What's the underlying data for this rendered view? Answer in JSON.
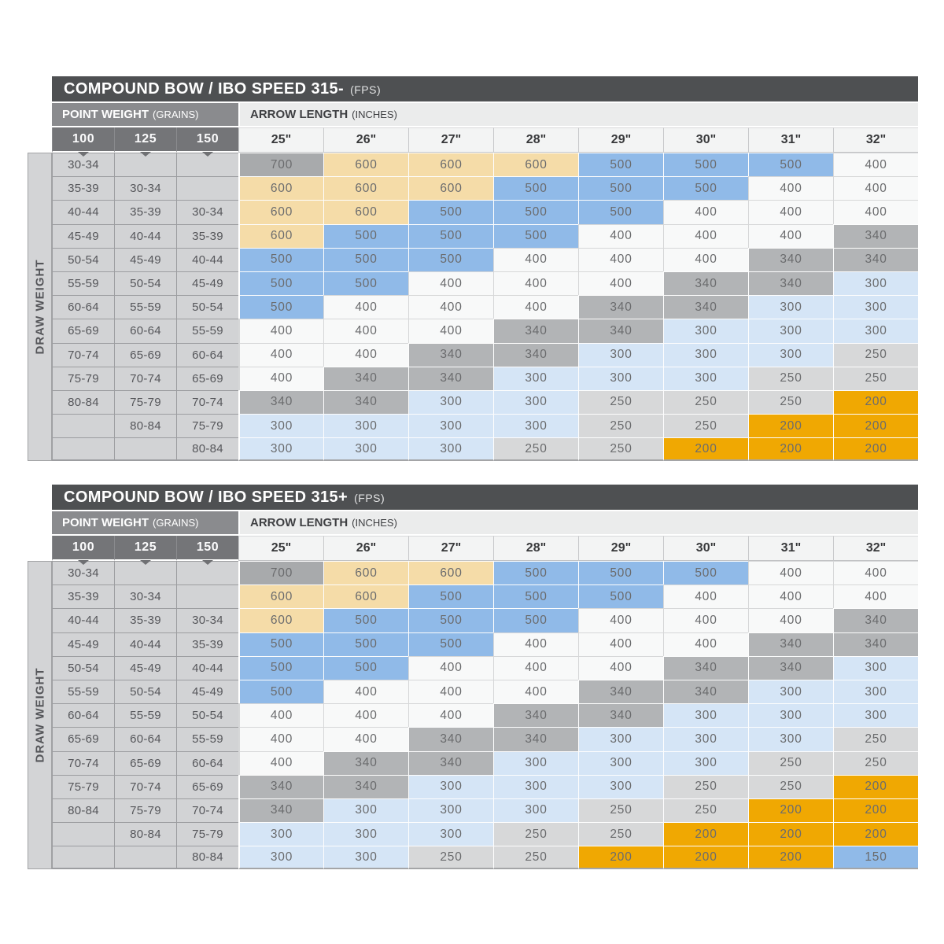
{
  "colors": {
    "title_bar_bg": "#4E5052",
    "point_weight_band_bg": "#8A8B8E",
    "arrow_length_band_bg": "#EBECEC",
    "point_weight_col_header_bg": "#747578",
    "arrow_col_header_bg": "#F3F4F4",
    "draw_weight_label_bg": "#D2D3D5",
    "value_colors": {
      "700": "#A8AAAC",
      "600": "#F5DCA8",
      "500": "#90BAE8",
      "400": "#F8F9F9",
      "340": "#B2B4B6",
      "300": "#D5E5F6",
      "250": "#D7D8D9",
      "200": "#F0A802",
      "150": "#90BAE8"
    }
  },
  "chart_data": [
    {
      "type": "table",
      "title": "COMPOUND BOW / IBO SPEED 315-",
      "title_unit": "(FPS)",
      "point_weight_label": "POINT WEIGHT",
      "point_weight_unit": "(GRAINS)",
      "arrow_length_label": "ARROW LENGTH",
      "arrow_length_unit": "(INCHES)",
      "side_label": "DRAW WEIGHT",
      "point_weight_columns": [
        "100",
        "125",
        "150"
      ],
      "arrow_length_columns": [
        "25\"",
        "26\"",
        "27\"",
        "28\"",
        "29\"",
        "30\"",
        "31\"",
        "32\""
      ],
      "rows": [
        {
          "labels": [
            "30-34",
            "",
            ""
          ],
          "values": [
            700,
            600,
            600,
            600,
            500,
            500,
            500,
            400
          ]
        },
        {
          "labels": [
            "35-39",
            "30-34",
            ""
          ],
          "values": [
            600,
            600,
            600,
            500,
            500,
            500,
            400,
            400
          ]
        },
        {
          "labels": [
            "40-44",
            "35-39",
            "30-34"
          ],
          "values": [
            600,
            600,
            500,
            500,
            500,
            400,
            400,
            400
          ]
        },
        {
          "labels": [
            "45-49",
            "40-44",
            "35-39"
          ],
          "values": [
            600,
            500,
            500,
            500,
            400,
            400,
            400,
            340
          ]
        },
        {
          "labels": [
            "50-54",
            "45-49",
            "40-44"
          ],
          "values": [
            500,
            500,
            500,
            400,
            400,
            400,
            340,
            340
          ]
        },
        {
          "labels": [
            "55-59",
            "50-54",
            "45-49"
          ],
          "values": [
            500,
            500,
            400,
            400,
            400,
            340,
            340,
            300
          ]
        },
        {
          "labels": [
            "60-64",
            "55-59",
            "50-54"
          ],
          "values": [
            500,
            400,
            400,
            400,
            340,
            340,
            300,
            300
          ]
        },
        {
          "labels": [
            "65-69",
            "60-64",
            "55-59"
          ],
          "values": [
            400,
            400,
            400,
            340,
            340,
            300,
            300,
            300
          ]
        },
        {
          "labels": [
            "70-74",
            "65-69",
            "60-64"
          ],
          "values": [
            400,
            400,
            340,
            340,
            300,
            300,
            300,
            250
          ]
        },
        {
          "labels": [
            "75-79",
            "70-74",
            "65-69"
          ],
          "values": [
            400,
            340,
            340,
            300,
            300,
            300,
            250,
            250
          ]
        },
        {
          "labels": [
            "80-84",
            "75-79",
            "70-74"
          ],
          "values": [
            340,
            340,
            300,
            300,
            250,
            250,
            250,
            200
          ]
        },
        {
          "labels": [
            "",
            "80-84",
            "75-79"
          ],
          "values": [
            300,
            300,
            300,
            300,
            250,
            250,
            200,
            200
          ]
        },
        {
          "labels": [
            "",
            "",
            "80-84"
          ],
          "values": [
            300,
            300,
            300,
            250,
            250,
            200,
            200,
            200
          ]
        }
      ]
    },
    {
      "type": "table",
      "title": "COMPOUND BOW / IBO SPEED 315+",
      "title_unit": "(FPS)",
      "point_weight_label": "POINT WEIGHT",
      "point_weight_unit": "(GRAINS)",
      "arrow_length_label": "ARROW LENGTH",
      "arrow_length_unit": "(INCHES)",
      "side_label": "DRAW WEIGHT",
      "point_weight_columns": [
        "100",
        "125",
        "150"
      ],
      "arrow_length_columns": [
        "25\"",
        "26\"",
        "27\"",
        "28\"",
        "29\"",
        "30\"",
        "31\"",
        "32\""
      ],
      "rows": [
        {
          "labels": [
            "30-34",
            "",
            ""
          ],
          "values": [
            700,
            600,
            600,
            500,
            500,
            500,
            400,
            400
          ]
        },
        {
          "labels": [
            "35-39",
            "30-34",
            ""
          ],
          "values": [
            600,
            600,
            500,
            500,
            500,
            400,
            400,
            400
          ]
        },
        {
          "labels": [
            "40-44",
            "35-39",
            "30-34"
          ],
          "values": [
            600,
            500,
            500,
            500,
            400,
            400,
            400,
            340
          ]
        },
        {
          "labels": [
            "45-49",
            "40-44",
            "35-39"
          ],
          "values": [
            500,
            500,
            500,
            400,
            400,
            400,
            340,
            340
          ]
        },
        {
          "labels": [
            "50-54",
            "45-49",
            "40-44"
          ],
          "values": [
            500,
            500,
            400,
            400,
            400,
            340,
            340,
            300
          ]
        },
        {
          "labels": [
            "55-59",
            "50-54",
            "45-49"
          ],
          "values": [
            500,
            400,
            400,
            400,
            340,
            340,
            300,
            300
          ]
        },
        {
          "labels": [
            "60-64",
            "55-59",
            "50-54"
          ],
          "values": [
            400,
            400,
            400,
            340,
            340,
            300,
            300,
            300
          ]
        },
        {
          "labels": [
            "65-69",
            "60-64",
            "55-59"
          ],
          "values": [
            400,
            400,
            340,
            340,
            300,
            300,
            300,
            250
          ]
        },
        {
          "labels": [
            "70-74",
            "65-69",
            "60-64"
          ],
          "values": [
            400,
            340,
            340,
            300,
            300,
            300,
            250,
            250
          ]
        },
        {
          "labels": [
            "75-79",
            "70-74",
            "65-69"
          ],
          "values": [
            340,
            340,
            300,
            300,
            300,
            250,
            250,
            200
          ]
        },
        {
          "labels": [
            "80-84",
            "75-79",
            "70-74"
          ],
          "values": [
            340,
            300,
            300,
            300,
            250,
            250,
            200,
            200
          ]
        },
        {
          "labels": [
            "",
            "80-84",
            "75-79"
          ],
          "values": [
            300,
            300,
            300,
            250,
            250,
            200,
            200,
            200
          ]
        },
        {
          "labels": [
            "",
            "",
            "80-84"
          ],
          "values": [
            300,
            300,
            250,
            250,
            200,
            200,
            200,
            150
          ]
        }
      ]
    }
  ]
}
